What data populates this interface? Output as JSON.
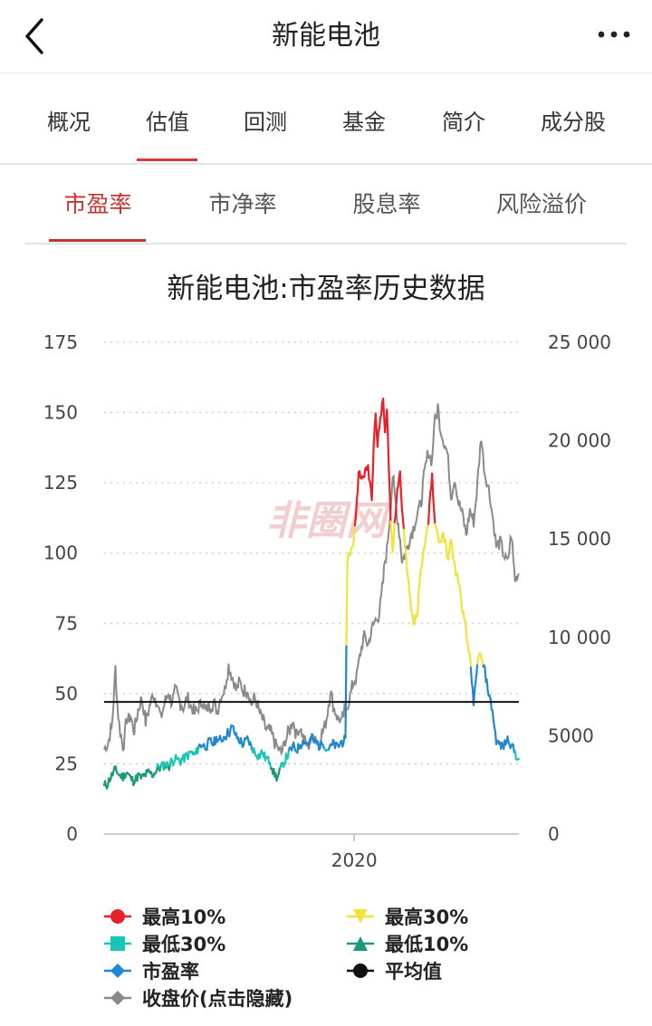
{
  "header": {
    "title": "新能电池",
    "back_icon": "back-arrow-icon",
    "more_icon": "more-dots-icon"
  },
  "tabs": [
    {
      "label": "概况",
      "active": false
    },
    {
      "label": "估值",
      "active": true
    },
    {
      "label": "回测",
      "active": false
    },
    {
      "label": "基金",
      "active": false
    },
    {
      "label": "简介",
      "active": false
    },
    {
      "label": "成分股",
      "active": false
    }
  ],
  "subtabs": [
    {
      "label": "市盈率",
      "active": true
    },
    {
      "label": "市净率",
      "active": false
    },
    {
      "label": "股息率",
      "active": false
    },
    {
      "label": "风险溢价",
      "active": false
    }
  ],
  "colors": {
    "accent": "#c23531",
    "top10": "#e8202a",
    "top30": "#f0e33a",
    "low30": "#19c6b6",
    "low10": "#1a9a78",
    "pe": "#1f88d0",
    "avg": "#111111",
    "close": "#8a8a8a"
  },
  "chart_data": {
    "type": "line",
    "title": "新能电池:市盈率历史数据",
    "watermark": "非圈网",
    "x_ticks": [
      {
        "label": "2020",
        "t": 0.603
      }
    ],
    "y_left": {
      "min": 0,
      "max": 175,
      "ticks": [
        "0",
        "25",
        "50",
        "75",
        "100",
        "125",
        "150",
        "175"
      ]
    },
    "y_right": {
      "min": 0,
      "max": 25000,
      "ticks": [
        "0",
        "5000",
        "10 000",
        "15 000",
        "20 000",
        "25 000"
      ]
    },
    "average_pe": 47,
    "pe_series": [
      [
        0.0,
        17
      ],
      [
        0.01,
        18
      ],
      [
        0.02,
        21
      ],
      [
        0.03,
        23
      ],
      [
        0.04,
        21
      ],
      [
        0.05,
        20
      ],
      [
        0.06,
        22
      ],
      [
        0.07,
        20
      ],
      [
        0.08,
        19
      ],
      [
        0.09,
        21
      ],
      [
        0.1,
        20
      ],
      [
        0.11,
        21
      ],
      [
        0.12,
        22
      ],
      [
        0.13,
        21
      ],
      [
        0.14,
        23
      ],
      [
        0.15,
        24
      ],
      [
        0.16,
        25
      ],
      [
        0.17,
        24
      ],
      [
        0.18,
        26
      ],
      [
        0.19,
        27
      ],
      [
        0.2,
        26
      ],
      [
        0.21,
        27
      ],
      [
        0.22,
        28
      ],
      [
        0.23,
        29
      ],
      [
        0.24,
        28
      ],
      [
        0.25,
        31
      ],
      [
        0.26,
        32
      ],
      [
        0.27,
        31
      ],
      [
        0.28,
        33
      ],
      [
        0.29,
        32
      ],
      [
        0.3,
        34
      ],
      [
        0.31,
        33
      ],
      [
        0.32,
        35
      ],
      [
        0.33,
        36
      ],
      [
        0.34,
        38
      ],
      [
        0.35,
        35
      ],
      [
        0.36,
        33
      ],
      [
        0.37,
        32
      ],
      [
        0.38,
        34
      ],
      [
        0.39,
        31
      ],
      [
        0.4,
        29
      ],
      [
        0.41,
        28
      ],
      [
        0.42,
        29
      ],
      [
        0.43,
        27
      ],
      [
        0.44,
        26
      ],
      [
        0.45,
        22
      ],
      [
        0.46,
        20
      ],
      [
        0.47,
        24
      ],
      [
        0.48,
        26
      ],
      [
        0.49,
        29
      ],
      [
        0.5,
        31
      ],
      [
        0.51,
        30
      ],
      [
        0.52,
        32
      ],
      [
        0.53,
        33
      ],
      [
        0.54,
        32
      ],
      [
        0.55,
        34
      ],
      [
        0.56,
        33
      ],
      [
        0.57,
        31
      ],
      [
        0.58,
        33
      ],
      [
        0.59,
        30
      ],
      [
        0.6,
        31
      ],
      [
        0.61,
        32
      ],
      [
        0.62,
        31
      ],
      [
        0.63,
        33
      ],
      [
        0.64,
        33
      ],
      [
        0.645,
        98
      ],
      [
        0.65,
        100
      ],
      [
        0.66,
        102
      ],
      [
        0.67,
        118
      ],
      [
        0.675,
        130
      ],
      [
        0.68,
        126
      ],
      [
        0.69,
        128
      ],
      [
        0.7,
        131
      ],
      [
        0.71,
        120
      ],
      [
        0.715,
        140
      ],
      [
        0.72,
        150
      ],
      [
        0.725,
        138
      ],
      [
        0.73,
        145
      ],
      [
        0.74,
        155
      ],
      [
        0.745,
        143
      ],
      [
        0.75,
        152
      ],
      [
        0.755,
        130
      ],
      [
        0.76,
        112
      ],
      [
        0.765,
        100
      ],
      [
        0.77,
        110
      ],
      [
        0.78,
        125
      ],
      [
        0.785,
        128
      ],
      [
        0.79,
        116
      ],
      [
        0.8,
        100
      ],
      [
        0.81,
        85
      ],
      [
        0.815,
        80
      ],
      [
        0.82,
        76
      ],
      [
        0.83,
        78
      ],
      [
        0.84,
        95
      ],
      [
        0.85,
        102
      ],
      [
        0.86,
        110
      ],
      [
        0.865,
        122
      ],
      [
        0.87,
        128
      ],
      [
        0.875,
        115
      ],
      [
        0.88,
        109
      ],
      [
        0.89,
        104
      ],
      [
        0.9,
        106
      ],
      [
        0.905,
        104
      ],
      [
        0.91,
        98
      ],
      [
        0.92,
        104
      ],
      [
        0.93,
        95
      ],
      [
        0.94,
        90
      ],
      [
        0.95,
        80
      ],
      [
        0.96,
        72
      ],
      [
        0.965,
        66
      ],
      [
        0.97,
        64
      ],
      [
        0.975,
        55
      ],
      [
        0.98,
        45
      ],
      [
        0.985,
        53
      ],
      [
        0.99,
        60
      ],
      [
        0.995,
        65
      ],
      [
        1.0,
        62
      ],
      [
        1.01,
        58
      ],
      [
        1.02,
        50
      ],
      [
        1.03,
        44
      ],
      [
        1.035,
        38
      ],
      [
        1.04,
        33
      ],
      [
        1.05,
        32
      ],
      [
        1.06,
        31
      ],
      [
        1.07,
        34
      ],
      [
        1.08,
        32
      ],
      [
        1.09,
        29
      ],
      [
        1.1,
        26
      ]
    ],
    "close_series": [
      [
        0.0,
        4300
      ],
      [
        0.01,
        4600
      ],
      [
        0.02,
        5400
      ],
      [
        0.025,
        6700
      ],
      [
        0.03,
        8500
      ],
      [
        0.035,
        6600
      ],
      [
        0.04,
        5600
      ],
      [
        0.05,
        4400
      ],
      [
        0.06,
        5800
      ],
      [
        0.07,
        6000
      ],
      [
        0.08,
        5200
      ],
      [
        0.09,
        6300
      ],
      [
        0.1,
        6900
      ],
      [
        0.11,
        5600
      ],
      [
        0.12,
        6500
      ],
      [
        0.13,
        7100
      ],
      [
        0.14,
        6800
      ],
      [
        0.15,
        5900
      ],
      [
        0.16,
        6600
      ],
      [
        0.17,
        7200
      ],
      [
        0.18,
        6700
      ],
      [
        0.19,
        7300
      ],
      [
        0.2,
        6800
      ],
      [
        0.21,
        6400
      ],
      [
        0.22,
        6900
      ],
      [
        0.23,
        6500
      ],
      [
        0.24,
        6100
      ],
      [
        0.25,
        6400
      ],
      [
        0.26,
        6800
      ],
      [
        0.27,
        6200
      ],
      [
        0.28,
        6500
      ],
      [
        0.29,
        6700
      ],
      [
        0.3,
        6300
      ],
      [
        0.31,
        7000
      ],
      [
        0.32,
        7400
      ],
      [
        0.33,
        8600
      ],
      [
        0.34,
        8000
      ],
      [
        0.35,
        7300
      ],
      [
        0.36,
        7700
      ],
      [
        0.37,
        7200
      ],
      [
        0.38,
        7400
      ],
      [
        0.39,
        6600
      ],
      [
        0.4,
        6900
      ],
      [
        0.41,
        6300
      ],
      [
        0.42,
        5800
      ],
      [
        0.43,
        5300
      ],
      [
        0.44,
        5200
      ],
      [
        0.45,
        4800
      ],
      [
        0.46,
        4400
      ],
      [
        0.47,
        4100
      ],
      [
        0.48,
        4700
      ],
      [
        0.49,
        5200
      ],
      [
        0.5,
        5800
      ],
      [
        0.51,
        5100
      ],
      [
        0.52,
        5400
      ],
      [
        0.53,
        4700
      ],
      [
        0.54,
        4500
      ],
      [
        0.55,
        4800
      ],
      [
        0.56,
        5000
      ],
      [
        0.57,
        4600
      ],
      [
        0.58,
        5200
      ],
      [
        0.59,
        5900
      ],
      [
        0.6,
        7300
      ],
      [
        0.61,
        6400
      ],
      [
        0.62,
        5900
      ],
      [
        0.63,
        5700
      ],
      [
        0.64,
        6300
      ],
      [
        0.65,
        6800
      ],
      [
        0.66,
        7600
      ],
      [
        0.67,
        8100
      ],
      [
        0.68,
        9200
      ],
      [
        0.69,
        10100
      ],
      [
        0.7,
        9600
      ],
      [
        0.71,
        10400
      ],
      [
        0.72,
        10900
      ],
      [
        0.73,
        11200
      ],
      [
        0.74,
        12800
      ],
      [
        0.745,
        13900
      ],
      [
        0.75,
        14500
      ],
      [
        0.76,
        16600
      ],
      [
        0.765,
        18200
      ],
      [
        0.77,
        17300
      ],
      [
        0.78,
        15800
      ],
      [
        0.785,
        15000
      ],
      [
        0.79,
        13900
      ],
      [
        0.8,
        14300
      ],
      [
        0.81,
        15000
      ],
      [
        0.82,
        15600
      ],
      [
        0.83,
        16200
      ],
      [
        0.84,
        16800
      ],
      [
        0.85,
        18400
      ],
      [
        0.86,
        19400
      ],
      [
        0.87,
        19000
      ],
      [
        0.875,
        20800
      ],
      [
        0.88,
        21100
      ],
      [
        0.885,
        21800
      ],
      [
        0.89,
        20800
      ],
      [
        0.9,
        20000
      ],
      [
        0.91,
        19400
      ],
      [
        0.92,
        17200
      ],
      [
        0.93,
        18100
      ],
      [
        0.94,
        16800
      ],
      [
        0.95,
        16300
      ],
      [
        0.96,
        15200
      ],
      [
        0.97,
        16500
      ],
      [
        0.98,
        15800
      ],
      [
        0.99,
        17800
      ],
      [
        1.0,
        20200
      ],
      [
        1.01,
        18300
      ],
      [
        1.02,
        17600
      ],
      [
        1.03,
        16200
      ],
      [
        1.04,
        14600
      ],
      [
        1.05,
        14900
      ],
      [
        1.06,
        14200
      ],
      [
        1.07,
        13800
      ],
      [
        1.08,
        15200
      ],
      [
        1.085,
        14000
      ],
      [
        1.09,
        12900
      ],
      [
        1.1,
        13300
      ]
    ],
    "legend": [
      {
        "label": "最高10%",
        "marker": "circle",
        "color": "#e8202a"
      },
      {
        "label": "最高30%",
        "marker": "triangle-down",
        "color": "#f0e33a"
      },
      {
        "label": "最低30%",
        "marker": "square",
        "color": "#19c6b6"
      },
      {
        "label": "最低10%",
        "marker": "triangle-up",
        "color": "#1a9a78"
      },
      {
        "label": "市盈率",
        "marker": "diamond",
        "color": "#1f88d0"
      },
      {
        "label": "平均值",
        "marker": "circle",
        "color": "#111111"
      },
      {
        "label": "收盘价(点击隐藏)",
        "marker": "diamond",
        "color": "#8a8a8a"
      }
    ]
  }
}
